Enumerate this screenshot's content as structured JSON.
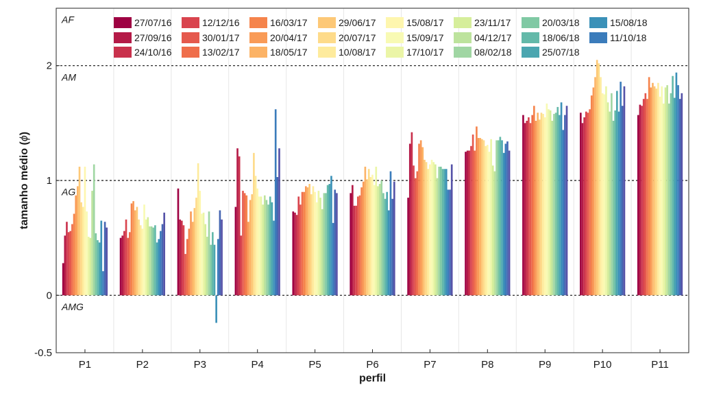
{
  "chart_data": {
    "type": "bar",
    "xlabel": "perfil",
    "ylabel": "tamanho médio (",
    "ylabel_symbol": "ϕ",
    "ylabel_close": ")",
    "ylim": [
      -0.5,
      2.5
    ],
    "yticks": [
      -0.5,
      0,
      1,
      2
    ],
    "ytick_labels": [
      "-0.5",
      "0",
      "1",
      "2"
    ],
    "grid": "vertical",
    "legend_position": "top",
    "reference_lines": [
      0,
      1,
      2
    ],
    "zones": [
      {
        "label": "AF",
        "y": 2.4
      },
      {
        "label": "AM",
        "y": 1.9
      },
      {
        "label": "AG",
        "y": 0.9
      },
      {
        "label": "AMG",
        "y": -0.1
      }
    ],
    "categories": [
      "P1",
      "P2",
      "P3",
      "P4",
      "P5",
      "P6",
      "P7",
      "P8",
      "P9",
      "P10",
      "P11"
    ],
    "series": [
      {
        "name": "27/07/16",
        "color": "#9e0142",
        "values": [
          0.28,
          0.5,
          0.93,
          0.77,
          0.73,
          0.89,
          0.85,
          1.25,
          1.57,
          1.59,
          1.57
        ]
      },
      {
        "name": "27/09/16",
        "color": "#b41a47",
        "values": [
          0.52,
          0.52,
          0.66,
          1.28,
          0.72,
          0.96,
          1.32,
          1.26,
          1.5,
          1.5,
          1.66
        ]
      },
      {
        "name": "24/10/16",
        "color": "#c9314c",
        "values": [
          0.64,
          0.56,
          0.65,
          1.21,
          0.7,
          0.78,
          1.42,
          1.26,
          1.52,
          1.55,
          1.65
        ]
      },
      {
        "name": "12/12/16",
        "color": "#d9444e",
        "values": [
          0.55,
          0.66,
          0.61,
          0.52,
          0.86,
          0.78,
          1.13,
          1.3,
          1.55,
          1.6,
          1.71
        ]
      },
      {
        "name": "30/01/17",
        "color": "#e5594d",
        "values": [
          0.56,
          0.5,
          0.36,
          0.91,
          0.79,
          0.86,
          1.02,
          1.4,
          1.5,
          1.59,
          1.76
        ]
      },
      {
        "name": "13/02/17",
        "color": "#ef6e4b",
        "values": [
          0.62,
          0.55,
          0.49,
          0.89,
          0.9,
          0.87,
          1.08,
          1.26,
          1.57,
          1.62,
          1.71
        ]
      },
      {
        "name": "16/03/17",
        "color": "#f5844c",
        "values": [
          0.71,
          0.8,
          0.58,
          0.87,
          0.9,
          0.94,
          1.32,
          1.47,
          1.65,
          1.74,
          1.9
        ]
      },
      {
        "name": "20/04/17",
        "color": "#f99b57",
        "values": [
          0.87,
          0.82,
          0.73,
          0.64,
          0.95,
          0.99,
          1.35,
          1.37,
          1.52,
          1.81,
          1.81
        ]
      },
      {
        "name": "18/05/17",
        "color": "#fcb366",
        "values": [
          0.95,
          0.74,
          0.64,
          0.83,
          0.94,
          1.12,
          1.29,
          1.37,
          1.59,
          1.9,
          1.85
        ]
      },
      {
        "name": "29/06/17",
        "color": "#fdc877",
        "values": [
          1.12,
          0.77,
          0.76,
          0.88,
          0.97,
          1.01,
          1.18,
          1.36,
          1.53,
          2.05,
          1.82
        ]
      },
      {
        "name": "20/07/17",
        "color": "#fedb8a",
        "values": [
          0.81,
          0.66,
          0.85,
          1.24,
          0.88,
          1.1,
          1.16,
          1.35,
          1.59,
          2.02,
          1.8
        ]
      },
      {
        "name": "10/08/17",
        "color": "#feeb9d",
        "values": [
          0.77,
          0.61,
          1.15,
          1.04,
          0.95,
          1.03,
          1.1,
          1.3,
          1.58,
          1.9,
          1.85
        ]
      },
      {
        "name": "15/08/17",
        "color": "#fef6ae",
        "values": [
          1.12,
          0.58,
          0.91,
          0.93,
          0.9,
          1.05,
          1.14,
          1.31,
          1.55,
          1.76,
          1.73
        ]
      },
      {
        "name": "15/09/17",
        "color": "#f8fab4",
        "values": [
          0.73,
          0.79,
          0.71,
          0.86,
          0.81,
          0.96,
          1.18,
          1.25,
          1.67,
          1.75,
          1.82
        ]
      },
      {
        "name": "17/10/17",
        "color": "#ebf5a7",
        "values": [
          0.51,
          0.66,
          0.72,
          0.86,
          0.91,
          1.12,
          1.16,
          1.36,
          1.62,
          1.82,
          1.67
        ]
      },
      {
        "name": "23/11/17",
        "color": "#d6ee9b",
        "values": [
          0.5,
          0.68,
          0.62,
          0.79,
          0.85,
          0.95,
          1.14,
          1.13,
          1.61,
          1.68,
          1.81
        ]
      },
      {
        "name": "04/12/17",
        "color": "#bde39d",
        "values": [
          0.91,
          0.6,
          0.51,
          0.87,
          0.75,
          0.97,
          1.02,
          1.08,
          1.52,
          1.6,
          1.83
        ]
      },
      {
        "name": "08/02/18",
        "color": "#a0d6a3",
        "values": [
          1.14,
          0.6,
          0.73,
          0.83,
          0.89,
          1.0,
          1.12,
          1.35,
          1.58,
          1.76,
          1.67
        ]
      },
      {
        "name": "20/03/18",
        "color": "#80c9a4",
        "values": [
          0.54,
          0.59,
          0.44,
          0.79,
          0.89,
          0.89,
          1.12,
          1.35,
          1.59,
          1.52,
          1.76
        ]
      },
      {
        "name": "18/06/18",
        "color": "#63b9a9",
        "values": [
          0.48,
          0.61,
          0.55,
          0.86,
          0.96,
          0.84,
          1.1,
          1.38,
          1.64,
          1.61,
          1.91
        ]
      },
      {
        "name": "25/07/18",
        "color": "#4ba6b0",
        "values": [
          0.46,
          0.46,
          0.44,
          0.81,
          0.97,
          0.9,
          1.1,
          1.35,
          1.57,
          1.78,
          1.72
        ]
      },
      {
        "name": "15/08/18",
        "color": "#3b91b8",
        "values": [
          0.65,
          0.49,
          -0.24,
          0.65,
          1.04,
          0.74,
          1.1,
          1.24,
          1.68,
          1.6,
          1.94
        ]
      },
      {
        "name": "11/10/18",
        "color": "#3b7cbb",
        "values": [
          0.21,
          0.56,
          0.49,
          1.62,
          0.63,
          1.08,
          0.92,
          1.32,
          1.44,
          1.86,
          1.83
        ]
      },
      {
        "name": "",
        "color": "#4666b2",
        "values": [
          0.64,
          0.62,
          0.74,
          1.03,
          0.92,
          0.84,
          0.92,
          1.34,
          1.57,
          1.65,
          1.71
        ]
      },
      {
        "name": "",
        "color": "#5653a8",
        "values": [
          0.59,
          0.72,
          0.66,
          1.28,
          0.89,
          0.99,
          1.14,
          1.26,
          1.65,
          1.82,
          1.76
        ]
      }
    ]
  }
}
